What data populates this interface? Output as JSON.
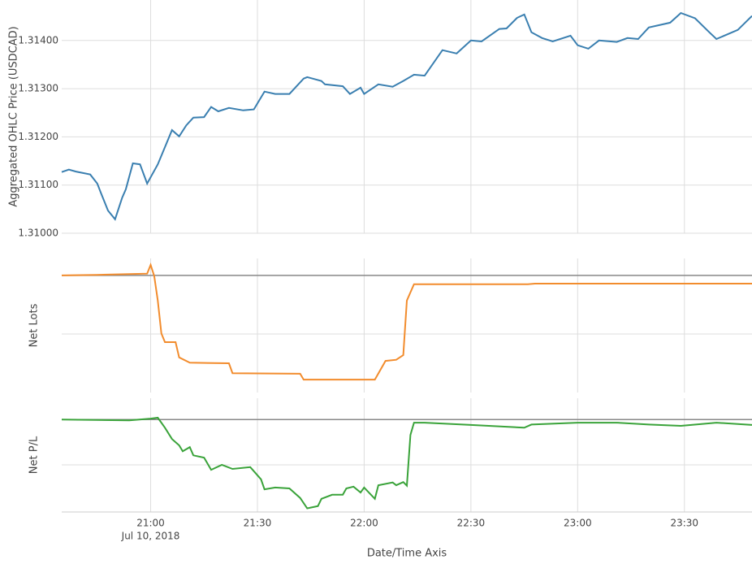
{
  "chart_data": [
    {
      "type": "line",
      "ylabel": "Aggregated OHLC Price (USDCAD)",
      "x": [
        "20:35",
        "20:37",
        "20:39",
        "20:41",
        "20:43",
        "20:45",
        "20:46",
        "20:48",
        "20:50",
        "20:52",
        "20:53",
        "20:55",
        "20:57",
        "20:59",
        "21:02",
        "21:06",
        "21:08",
        "21:10",
        "21:12",
        "21:15",
        "21:17",
        "21:19",
        "21:22",
        "21:26",
        "21:29",
        "21:32",
        "21:35",
        "21:39",
        "21:43",
        "21:44",
        "21:48",
        "21:49",
        "21:54",
        "21:56",
        "21:59",
        "22:00",
        "22:04",
        "22:08",
        "22:11",
        "22:14",
        "22:17",
        "22:22",
        "22:26",
        "22:30",
        "22:33",
        "22:38",
        "22:40",
        "22:43",
        "22:45",
        "22:47",
        "22:50",
        "22:53",
        "22:58",
        "23:00",
        "23:03",
        "23:06",
        "23:11",
        "23:14",
        "23:17",
        "23:20",
        "23:26",
        "23:29",
        "23:33",
        "23:37",
        "23:39",
        "23:45",
        "23:49"
      ],
      "series": [
        {
          "color": "#3a7fb0",
          "values": [
            1.31127,
            1.31132,
            1.31128,
            1.31125,
            1.31122,
            1.31103,
            1.31084,
            1.31047,
            1.31029,
            1.31074,
            1.31091,
            1.31145,
            1.31143,
            1.31103,
            1.31143,
            1.31214,
            1.31201,
            1.31224,
            1.3124,
            1.31241,
            1.31262,
            1.31253,
            1.3126,
            1.31255,
            1.31257,
            1.31294,
            1.31289,
            1.31289,
            1.31321,
            1.31324,
            1.31316,
            1.31309,
            1.31305,
            1.31289,
            1.31302,
            1.31289,
            1.31309,
            1.31304,
            1.31316,
            1.31329,
            1.31327,
            1.3138,
            1.31373,
            1.314,
            1.31398,
            1.31424,
            1.31425,
            1.31447,
            1.31454,
            1.31417,
            1.31405,
            1.31398,
            1.3141,
            1.3139,
            1.31383,
            1.314,
            1.31397,
            1.31405,
            1.31403,
            1.31427,
            1.31437,
            1.31457,
            1.31446,
            1.31417,
            1.31403,
            1.31422,
            1.31451
          ]
        }
      ],
      "xlim": [
        "20:35",
        "23:49"
      ],
      "ylim": [
        1.31,
        1.31484
      ],
      "yticks": [
        {
          "value": 1.31,
          "label": "1.31000"
        },
        {
          "value": 1.311,
          "label": "1.31100"
        },
        {
          "value": 1.312,
          "label": "1.31200"
        },
        {
          "value": 1.313,
          "label": "1.31300"
        },
        {
          "value": 1.314,
          "label": "1.31400"
        }
      ],
      "grid": true
    },
    {
      "type": "line",
      "ylabel": "Net Lots",
      "x": [
        "20:35",
        "20:45",
        "20:59",
        "21:00",
        "21:01",
        "21:02",
        "21:03",
        "21:04",
        "21:07",
        "21:08",
        "21:11",
        "21:22",
        "21:23",
        "21:42",
        "21:43",
        "22:03",
        "22:06",
        "22:09",
        "22:11",
        "22:12",
        "22:14",
        "22:46",
        "22:48",
        "23:49"
      ],
      "series": [
        {
          "color": "#f28c2d",
          "values": [
            0,
            0.01,
            0.03,
            0.18,
            -0.01,
            -0.43,
            -0.99,
            -1.14,
            -1.14,
            -1.4,
            -1.49,
            -1.5,
            -1.67,
            -1.68,
            -1.78,
            -1.78,
            -1.46,
            -1.44,
            -1.36,
            -0.43,
            -0.15,
            -0.15,
            -0.14,
            -0.14
          ]
        }
      ],
      "xlim": [
        "20:35",
        "23:49"
      ],
      "ylim": [
        -2,
        0.29
      ],
      "yticks": [
        -1,
        0
      ],
      "grid": true,
      "zero_line": true
    },
    {
      "type": "line",
      "ylabel": "Net P/L",
      "xlabel": "Date/Time Axis",
      "x": [
        "20:35",
        "20:54",
        "21:00",
        "21:02",
        "21:04",
        "21:06",
        "21:08",
        "21:09",
        "21:11",
        "21:12",
        "21:15",
        "21:17",
        "21:20",
        "21:23",
        "21:28",
        "21:31",
        "21:32",
        "21:35",
        "21:39",
        "21:42",
        "21:44",
        "21:47",
        "21:48",
        "21:51",
        "21:54",
        "21:55",
        "21:57",
        "21:59",
        "22:00",
        "22:03",
        "22:04",
        "22:08",
        "22:09",
        "22:11",
        "22:12",
        "22:13",
        "22:14",
        "22:17",
        "22:30",
        "22:45",
        "22:47",
        "23:00",
        "23:11",
        "23:20",
        "23:29",
        "23:39",
        "23:49"
      ],
      "series": [
        {
          "color": "#3aa33a",
          "values": [
            0,
            -0.02,
            0.02,
            0.04,
            -0.18,
            -0.43,
            -0.57,
            -0.7,
            -0.61,
            -0.79,
            -0.84,
            -1.11,
            -1,
            -1.09,
            -1.05,
            -1.32,
            -1.54,
            -1.5,
            -1.52,
            -1.73,
            -1.96,
            -1.91,
            -1.75,
            -1.66,
            -1.66,
            -1.52,
            -1.48,
            -1.61,
            -1.5,
            -1.75,
            -1.45,
            -1.39,
            -1.45,
            -1.38,
            -1.46,
            -0.34,
            -0.07,
            -0.07,
            -0.12,
            -0.18,
            -0.11,
            -0.07,
            -0.07,
            -0.11,
            -0.14,
            -0.07,
            -0.12
          ]
        }
      ],
      "xlim": [
        "20:35",
        "23:49"
      ],
      "xticks": [
        "21:00",
        "21:30",
        "22:00",
        "22:30",
        "23:00",
        "23:30"
      ],
      "date_label": "Jul 10, 2018",
      "ylim": [
        -2.04,
        0.47
      ],
      "yticks": [
        -1,
        0
      ],
      "grid": true,
      "zero_line": true
    }
  ]
}
